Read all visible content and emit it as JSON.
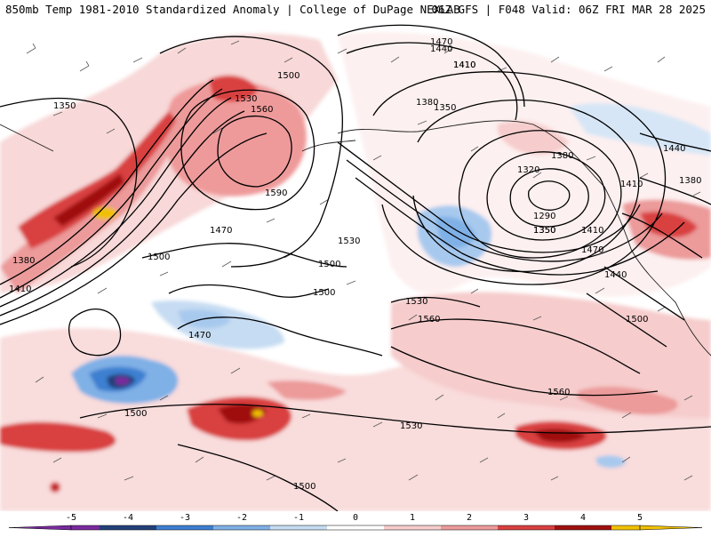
{
  "header": {
    "title": "850mb Temp 1981-2010 Standardized Anomaly | College of DuPage NEXLAB",
    "run_info": "06Z GFS | F048 Valid: 06Z FRI MAR 28 2025"
  },
  "contours": {
    "labels": [
      "1350",
      "1530",
      "1500",
      "1560",
      "1590",
      "1470",
      "1500",
      "1380",
      "1410",
      "1350",
      "1470",
      "1440",
      "1410",
      "1350",
      "1380",
      "1320",
      "1290",
      "1350",
      "1410",
      "1470",
      "1440",
      "1500",
      "1560",
      "1560",
      "1500",
      "1500",
      "1470",
      "1530",
      "1530",
      "1500",
      "1530",
      "1500",
      "1410",
      "1380",
      "1440",
      "1380",
      "1410"
    ]
  },
  "colorbar": {
    "ticks": [
      "-5",
      "-4",
      "-3",
      "-2",
      "-1",
      "0",
      "1",
      "2",
      "3",
      "4",
      "5"
    ],
    "colors": [
      "#7a2a9e",
      "#24407a",
      "#3d7fd0",
      "#7fb0e6",
      "#c6dcf2",
      "#ffffff",
      "#f6cccc",
      "#ec9a9a",
      "#d94040",
      "#a01010",
      "#f0c000"
    ]
  }
}
